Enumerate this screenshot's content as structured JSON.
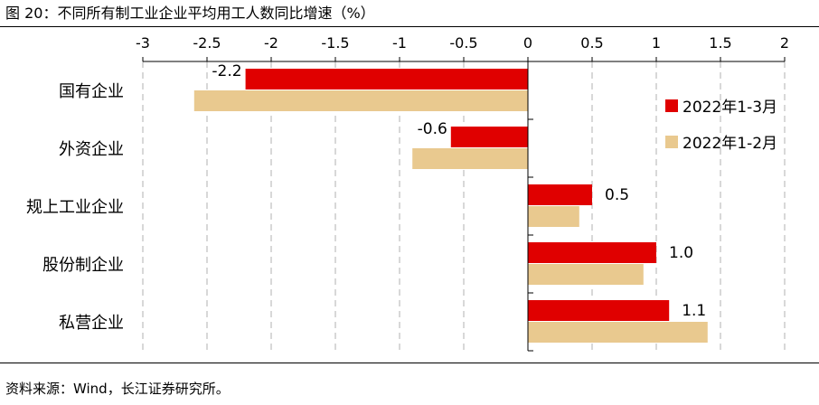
{
  "header": {
    "title": "图 20：不同所有制工业企业平均用工人数同比增速（%）"
  },
  "footer": {
    "source": "资料来源：Wind，长江证券研究所。"
  },
  "colors": {
    "series1": "#e00000",
    "series2": "#e9c98f",
    "grid": "#bfbfbf",
    "axis": "#000000"
  },
  "chart_data": {
    "type": "bar",
    "orientation": "horizontal",
    "title": "图 20：不同所有制工业企业平均用工人数同比增速（%）",
    "categories": [
      "国有企业",
      "外资企业",
      "规上工业企业",
      "股份制企业",
      "私营企业"
    ],
    "series": [
      {
        "name": "2022年1-3月",
        "values": [
          -2.2,
          -0.6,
          0.5,
          1.0,
          1.1
        ],
        "labels": [
          "-2.2",
          "-0.6",
          "0.5",
          "1.0",
          "1.1"
        ]
      },
      {
        "name": "2022年1-2月",
        "values": [
          -2.6,
          -0.9,
          0.4,
          0.9,
          1.4
        ]
      }
    ],
    "xlim": [
      -3,
      2
    ],
    "xticks": [
      -3,
      -2.5,
      -2,
      -1.5,
      -1,
      -0.5,
      0,
      0.5,
      1,
      1.5,
      2
    ],
    "xtick_labels": [
      "-3",
      "-2.5",
      "-2",
      "-1.5",
      "-1",
      "-0.5",
      "0",
      "0.5",
      "1",
      "1.5",
      "2"
    ],
    "x_axis_position": "top",
    "grid": "vertical dashed",
    "legend": "right"
  }
}
